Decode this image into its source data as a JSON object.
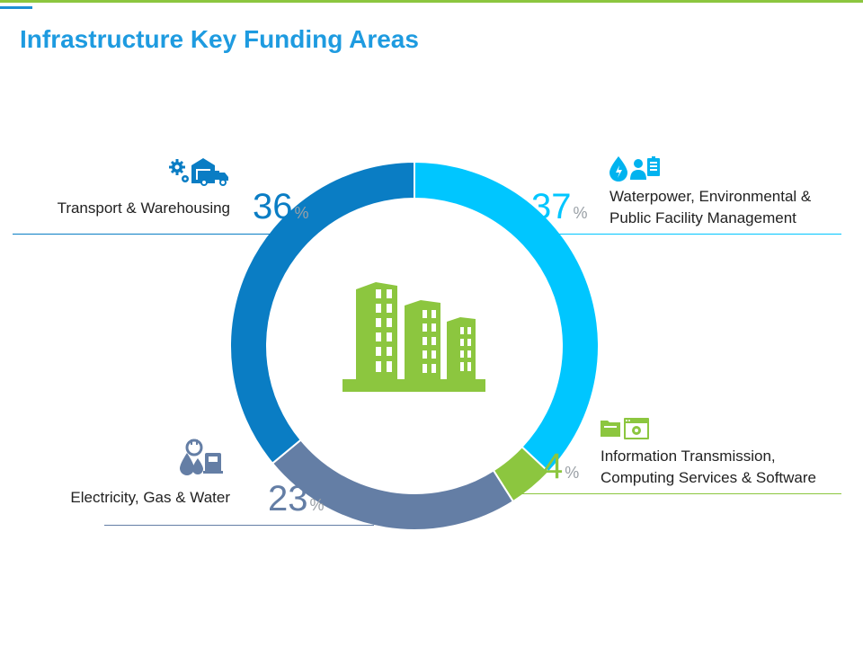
{
  "title": "Infrastructure Key Funding Areas",
  "chart_data": {
    "type": "pie",
    "variant": "donut",
    "title": "Infrastructure Key Funding Areas",
    "percent_symbol": "%",
    "categories": [
      "Waterpower, Environmental & Public Facility Management",
      "Information Transmission, Computing Services & Software",
      "Electricity, Gas & Water",
      "Transport & Warehousing"
    ],
    "values": [
      37,
      4,
      23,
      36
    ],
    "colors": [
      "#00c6ff",
      "#8cc63f",
      "#647ea5",
      "#0a7dc4"
    ],
    "center_icon": "buildings-icon"
  },
  "segments": [
    {
      "value_text": "37",
      "label_lines": [
        "Waterpower, Environmental &",
        "Public Facility Management"
      ],
      "icon": "water-environment-icon",
      "color": "#00c6ff"
    },
    {
      "value_text": "4",
      "label_lines": [
        "Information Transmission,",
        "Computing Services & Software"
      ],
      "icon": "computing-icon",
      "color": "#8cc63f"
    },
    {
      "value_text": "23",
      "label_lines": [
        "Electricity, Gas & Water"
      ],
      "icon": "utilities-icon",
      "color": "#647ea5"
    },
    {
      "value_text": "36",
      "label_lines": [
        "Transport & Warehousing"
      ],
      "icon": "transport-icon",
      "color": "#0a7dc4"
    }
  ]
}
